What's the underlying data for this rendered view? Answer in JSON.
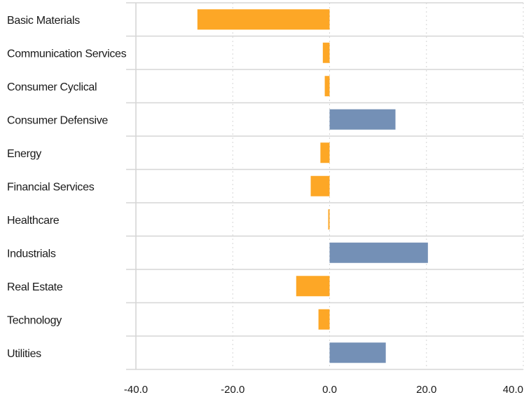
{
  "chart_data": {
    "type": "bar",
    "orientation": "horizontal",
    "title": "",
    "xlabel": "",
    "ylabel": "",
    "categories": [
      "Basic Materials",
      "Communication Services",
      "Consumer Cyclical",
      "Consumer Defensive",
      "Energy",
      "Financial Services",
      "Healthcare",
      "Industrials",
      "Real Estate",
      "Technology",
      "Utilities"
    ],
    "values": [
      -27.3,
      -1.4,
      -1.0,
      13.6,
      -1.9,
      -3.9,
      -0.2,
      20.3,
      -6.9,
      -2.3,
      11.6
    ],
    "xlim": [
      -40,
      40
    ],
    "xticks": [
      "-40.0",
      "-20.0",
      "0.0",
      "20.0",
      "40.0"
    ],
    "xtick_values": [
      -40,
      -20,
      0,
      20,
      40
    ],
    "grid": "vertical dotted at ticks, horizontal solid between rows",
    "legend": "none",
    "colors": {
      "negative": "#fda726",
      "positive": "#7490b6",
      "grid": "#d6d6d6"
    }
  }
}
